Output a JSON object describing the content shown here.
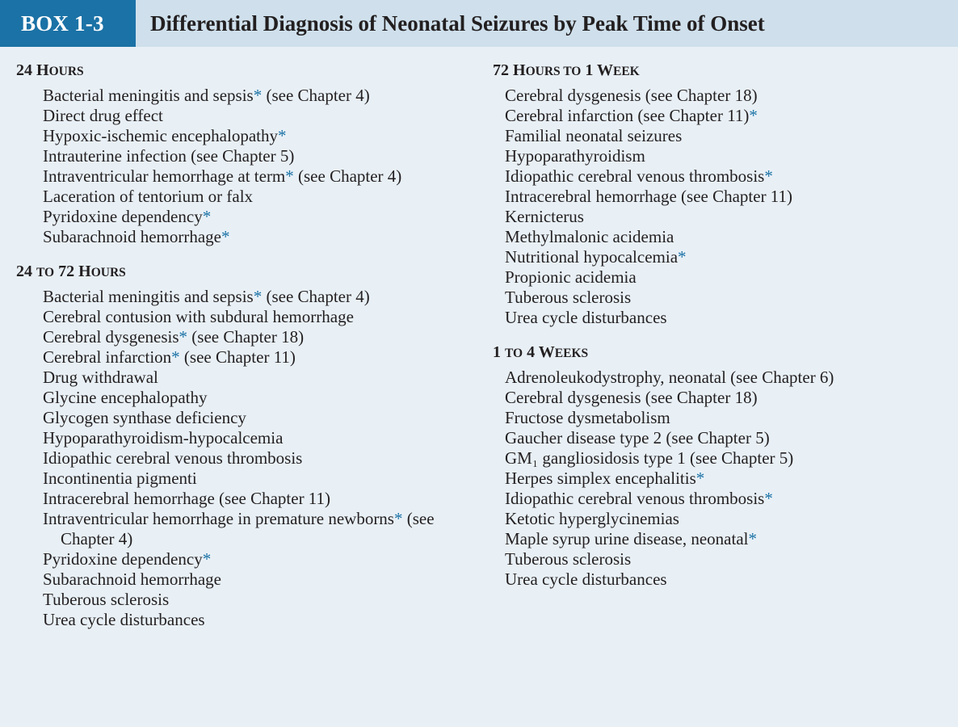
{
  "header": {
    "box_label": "BOX 1-3",
    "title": "Differential Diagnosis of Neonatal Seizures by Peak Time of Onset"
  },
  "sections": {
    "s24h": {
      "heading_num": "24 H",
      "heading_rest": "OURS",
      "items": [
        [
          "Bacterial meningitis and sepsis",
          "*",
          " (see Chapter 4)"
        ],
        [
          "Direct drug effect",
          "",
          ""
        ],
        [
          "Hypoxic-ischemic encephalopathy",
          "*",
          ""
        ],
        [
          "Intrauterine infection (see Chapter 5)",
          "",
          ""
        ],
        [
          "Intraventricular hemorrhage at term",
          "*",
          " (see Chapter 4)"
        ],
        [
          "Laceration of tentorium or falx",
          "",
          ""
        ],
        [
          "Pyridoxine dependency",
          "*",
          ""
        ],
        [
          "Subarachnoid hemorrhage",
          "*",
          ""
        ]
      ]
    },
    "s24to72": {
      "heading_num": "24 ",
      "heading_to": "TO",
      "heading_num2": " 72 H",
      "heading_rest": "OURS",
      "items": [
        [
          "Bacterial meningitis and sepsis",
          "*",
          " (see Chapter 4)"
        ],
        [
          "Cerebral contusion with subdural hemorrhage",
          "",
          ""
        ],
        [
          "Cerebral dysgenesis",
          "*",
          " (see Chapter 18)"
        ],
        [
          "Cerebral infarction",
          "*",
          " (see Chapter 11)"
        ],
        [
          "Drug withdrawal",
          "",
          ""
        ],
        [
          "Glycine encephalopathy",
          "",
          ""
        ],
        [
          "Glycogen synthase deficiency",
          "",
          ""
        ],
        [
          "Hypoparathyroidism-hypocalcemia",
          "",
          ""
        ],
        [
          "Idiopathic cerebral venous thrombosis",
          "",
          ""
        ],
        [
          "Incontinentia pigmenti",
          "",
          ""
        ],
        [
          "Intracerebral hemorrhage (see Chapter 11)",
          "",
          ""
        ],
        [
          "Intraventricular hemorrhage in premature newborns",
          "*",
          " (see Chapter 4)"
        ],
        [
          "Pyridoxine dependency",
          "*",
          ""
        ],
        [
          "Subarachnoid hemorrhage",
          "",
          ""
        ],
        [
          "Tuberous sclerosis",
          "",
          ""
        ],
        [
          "Urea cycle disturbances",
          "",
          ""
        ]
      ]
    },
    "s72h1w": {
      "heading_num": "72 H",
      "heading_rest": "OURS TO",
      "heading_num2": " 1 W",
      "heading_rest2": "EEK",
      "items": [
        [
          "Cerebral dysgenesis (see Chapter 18)",
          "",
          ""
        ],
        [
          "Cerebral infarction (see Chapter 11)",
          "*",
          ""
        ],
        [
          "Familial neonatal seizures",
          "",
          ""
        ],
        [
          "Hypoparathyroidism",
          "",
          ""
        ],
        [
          "Idiopathic cerebral venous thrombosis",
          "*",
          ""
        ],
        [
          "Intracerebral hemorrhage (see Chapter 11)",
          "",
          ""
        ],
        [
          "Kernicterus",
          "",
          ""
        ],
        [
          "Methylmalonic acidemia",
          "",
          ""
        ],
        [
          "Nutritional hypocalcemia",
          "*",
          ""
        ],
        [
          "Propionic acidemia",
          "",
          ""
        ],
        [
          "Tuberous sclerosis",
          "",
          ""
        ],
        [
          "Urea cycle disturbances",
          "",
          ""
        ]
      ]
    },
    "s1to4w": {
      "heading_num": "1 ",
      "heading_to": "TO",
      "heading_num2": " 4 W",
      "heading_rest": "EEKS",
      "items": [
        [
          "Adrenoleukodystrophy, neonatal (see Chapter 6)",
          "",
          ""
        ],
        [
          "Cerebral dysgenesis (see Chapter 18)",
          "",
          ""
        ],
        [
          "Fructose dysmetabolism",
          "",
          ""
        ],
        [
          "Gaucher disease type 2 (see Chapter 5)",
          "",
          ""
        ],
        [
          "GM₁ gangliosidosis type 1 (see Chapter 5)",
          "",
          ""
        ],
        [
          "Herpes simplex encephalitis",
          "*",
          ""
        ],
        [
          "Idiopathic cerebral venous thrombosis",
          "*",
          ""
        ],
        [
          "Ketotic hyperglycinemias",
          "",
          ""
        ],
        [
          "Maple syrup urine disease, neonatal",
          "*",
          ""
        ],
        [
          "Tuberous sclerosis",
          "",
          ""
        ],
        [
          "Urea cycle disturbances",
          "",
          ""
        ]
      ]
    }
  },
  "colors": {
    "label_bg": "#1b72a6",
    "title_bg": "#cfe0ec",
    "body_bg": "#e8f0f6",
    "asterisk": "#1b72a6"
  }
}
